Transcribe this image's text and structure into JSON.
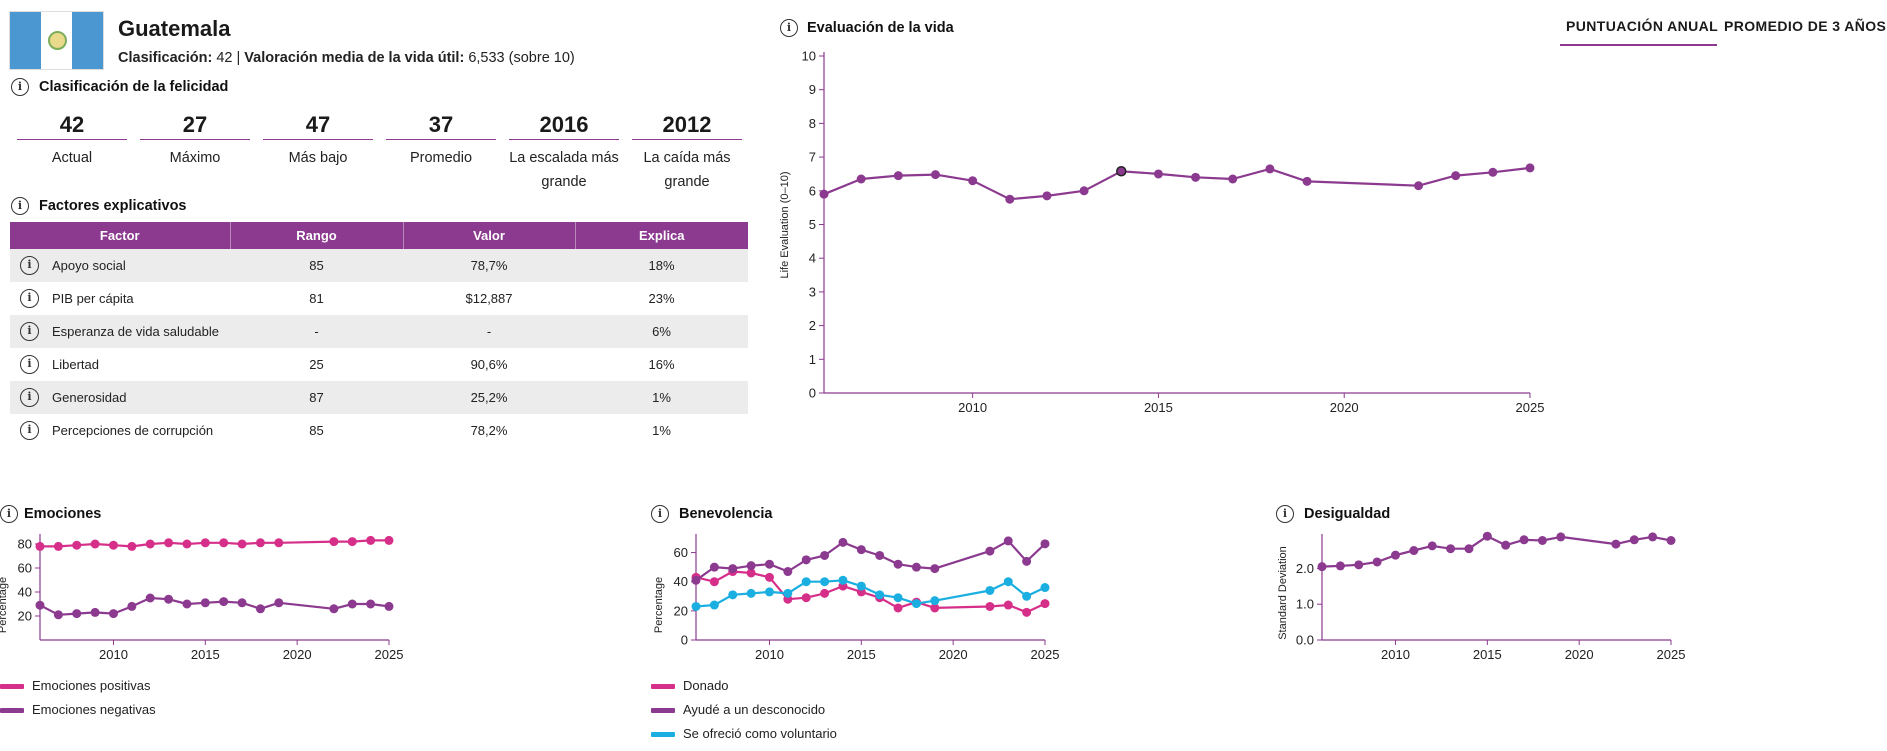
{
  "header": {
    "country": "Guatemala",
    "rank_label": "Clasificación:",
    "rank_value": "42",
    "separator": "|",
    "ladder_label": "Valoración media de la vida útil:",
    "ladder_value": "6,533",
    "ladder_suffix": "(sobre 10)"
  },
  "ranking": {
    "title": "Clasificación de la felicidad",
    "items": [
      {
        "value": "42",
        "label": "Actual"
      },
      {
        "value": "27",
        "label": "Máximo"
      },
      {
        "value": "47",
        "label": "Más bajo"
      },
      {
        "value": "37",
        "label": "Promedio"
      },
      {
        "value": "2016",
        "label": "La escalada más grande"
      },
      {
        "value": "2012",
        "label": "La caída más grande"
      }
    ]
  },
  "factors": {
    "title": "Factores explicativos",
    "columns": [
      "Factor",
      "Rango",
      "Valor",
      "Explica"
    ],
    "rows": [
      {
        "name": "Apoyo social",
        "rank": "85",
        "value": "78,7%",
        "explains": "18%"
      },
      {
        "name": "PIB per cápita",
        "rank": "81",
        "value": "$12,887",
        "explains": "23%"
      },
      {
        "name": "Esperanza de vida saludable",
        "rank": "-",
        "value": "-",
        "explains": "6%"
      },
      {
        "name": "Libertad",
        "rank": "25",
        "value": "90,6%",
        "explains": "16%"
      },
      {
        "name": "Generosidad",
        "rank": "87",
        "value": "25,2%",
        "explains": "1%"
      },
      {
        "name": "Percepciones de corrupción",
        "rank": "85",
        "value": "78,2%",
        "explains": "1%"
      }
    ]
  },
  "tabs": {
    "annual": "PUNTUACIÓN ANUAL",
    "three_year": "PROMEDIO DE 3 AÑOS",
    "active": "annual"
  },
  "colors": {
    "purple": "#8b3a8f",
    "pink": "#d62f8a",
    "cyan": "#1aafe0"
  },
  "icons": [
    "info-icon"
  ],
  "chart_data": [
    {
      "type": "line",
      "title": "Evaluación de la vida",
      "ylabel": "Life Evaluation (0–10)",
      "xlabel": "",
      "xlim": [
        2006,
        2025
      ],
      "ylim": [
        0,
        10
      ],
      "x_ticks": [
        2010,
        2015,
        2020,
        2025
      ],
      "y_ticks": [
        0,
        1,
        2,
        3,
        4,
        5,
        6,
        7,
        8,
        9,
        10
      ],
      "grid": false,
      "series": [
        {
          "color": "#8b3a8f",
          "highlight_x": 2014,
          "points": [
            [
              2006,
              5.9
            ],
            [
              2007,
              6.35
            ],
            [
              2008,
              6.45
            ],
            [
              2009,
              6.48
            ],
            [
              2010,
              6.3
            ],
            [
              2011,
              5.75
            ],
            [
              2012,
              5.85
            ],
            [
              2013,
              6.0
            ],
            [
              2014,
              6.58
            ],
            [
              2015,
              6.5
            ],
            [
              2016,
              6.4
            ],
            [
              2017,
              6.35
            ],
            [
              2018,
              6.65
            ],
            [
              2019,
              6.28
            ],
            [
              2022,
              6.15
            ],
            [
              2023,
              6.45
            ],
            [
              2024,
              6.55
            ],
            [
              2025,
              6.68
            ]
          ]
        }
      ]
    },
    {
      "type": "line",
      "title": "Emociones",
      "ylabel": "Percentage",
      "xlabel": "",
      "xlim": [
        2006,
        2025
      ],
      "ylim": [
        0,
        85
      ],
      "x_ticks": [
        2010,
        2015,
        2020,
        2025
      ],
      "y_ticks": [
        20,
        40,
        60,
        80
      ],
      "grid": false,
      "legend_position": "bottom-left",
      "series": [
        {
          "name": "Emociones positivas",
          "color": "#d62f8a",
          "points": [
            [
              2006,
              78
            ],
            [
              2007,
              78
            ],
            [
              2008,
              79
            ],
            [
              2009,
              80
            ],
            [
              2010,
              79
            ],
            [
              2011,
              78
            ],
            [
              2012,
              80
            ],
            [
              2013,
              81
            ],
            [
              2014,
              80
            ],
            [
              2015,
              81
            ],
            [
              2016,
              81
            ],
            [
              2017,
              80
            ],
            [
              2018,
              81
            ],
            [
              2019,
              81
            ],
            [
              2022,
              82
            ],
            [
              2023,
              82
            ],
            [
              2024,
              83
            ],
            [
              2025,
              83
            ]
          ]
        },
        {
          "name": "Emociones negativas",
          "color": "#8b3a8f",
          "points": [
            [
              2006,
              29
            ],
            [
              2007,
              21
            ],
            [
              2008,
              22
            ],
            [
              2009,
              23
            ],
            [
              2010,
              22
            ],
            [
              2011,
              28
            ],
            [
              2012,
              35
            ],
            [
              2013,
              34
            ],
            [
              2014,
              30
            ],
            [
              2015,
              31
            ],
            [
              2016,
              32
            ],
            [
              2017,
              31
            ],
            [
              2018,
              26
            ],
            [
              2019,
              31
            ],
            [
              2022,
              26
            ],
            [
              2023,
              30
            ],
            [
              2024,
              30
            ],
            [
              2025,
              28
            ]
          ]
        }
      ]
    },
    {
      "type": "line",
      "title": "Benevolencia",
      "ylabel": "Percentage",
      "xlabel": "",
      "xlim": [
        2006,
        2025
      ],
      "ylim": [
        0,
        70
      ],
      "x_ticks": [
        2010,
        2015,
        2020,
        2025
      ],
      "y_ticks": [
        0,
        20,
        40,
        60
      ],
      "grid": false,
      "legend_position": "bottom-left",
      "series": [
        {
          "name": "Donado",
          "color": "#d62f8a",
          "points": [
            [
              2006,
              43
            ],
            [
              2007,
              40
            ],
            [
              2008,
              47
            ],
            [
              2009,
              46
            ],
            [
              2010,
              43
            ],
            [
              2011,
              28
            ],
            [
              2012,
              29
            ],
            [
              2013,
              32
            ],
            [
              2014,
              37
            ],
            [
              2015,
              33
            ],
            [
              2016,
              29
            ],
            [
              2017,
              22
            ],
            [
              2018,
              26
            ],
            [
              2019,
              22
            ],
            [
              2022,
              23
            ],
            [
              2023,
              24
            ],
            [
              2024,
              19
            ],
            [
              2025,
              25
            ]
          ]
        },
        {
          "name": "Ayudé a un desconocido",
          "color": "#8b3a8f",
          "points": [
            [
              2006,
              41
            ],
            [
              2007,
              50
            ],
            [
              2008,
              49
            ],
            [
              2009,
              51
            ],
            [
              2010,
              52
            ],
            [
              2011,
              47
            ],
            [
              2012,
              55
            ],
            [
              2013,
              58
            ],
            [
              2014,
              67
            ],
            [
              2015,
              62
            ],
            [
              2016,
              58
            ],
            [
              2017,
              52
            ],
            [
              2018,
              50
            ],
            [
              2019,
              49
            ],
            [
              2022,
              61
            ],
            [
              2023,
              68
            ],
            [
              2024,
              54
            ],
            [
              2025,
              66
            ]
          ]
        },
        {
          "name": "Se ofreció como voluntario",
          "color": "#1aafe0",
          "points": [
            [
              2006,
              23
            ],
            [
              2007,
              24
            ],
            [
              2008,
              31
            ],
            [
              2009,
              32
            ],
            [
              2010,
              33
            ],
            [
              2011,
              32
            ],
            [
              2012,
              40
            ],
            [
              2013,
              40
            ],
            [
              2014,
              41
            ],
            [
              2015,
              37
            ],
            [
              2016,
              31
            ],
            [
              2017,
              29
            ],
            [
              2018,
              25
            ],
            [
              2019,
              27
            ],
            [
              2022,
              34
            ],
            [
              2023,
              40
            ],
            [
              2024,
              30
            ],
            [
              2025,
              36
            ]
          ]
        }
      ]
    },
    {
      "type": "line",
      "title": "Desigualdad",
      "ylabel": "Standard Deviation",
      "xlabel": "",
      "xlim": [
        2006,
        2025
      ],
      "ylim": [
        0,
        2.85
      ],
      "x_ticks": [
        2010,
        2015,
        2020,
        2025
      ],
      "y_ticks": [
        "0.0",
        "1.0",
        "2.0"
      ],
      "grid": false,
      "series": [
        {
          "color": "#8b3a8f",
          "points": [
            [
              2006,
              2.05
            ],
            [
              2007,
              2.07
            ],
            [
              2008,
              2.1
            ],
            [
              2009,
              2.18
            ],
            [
              2010,
              2.37
            ],
            [
              2011,
              2.5
            ],
            [
              2012,
              2.63
            ],
            [
              2013,
              2.55
            ],
            [
              2014,
              2.55
            ],
            [
              2015,
              2.9
            ],
            [
              2016,
              2.65
            ],
            [
              2017,
              2.8
            ],
            [
              2018,
              2.78
            ],
            [
              2019,
              2.88
            ],
            [
              2022,
              2.68
            ],
            [
              2023,
              2.8
            ],
            [
              2024,
              2.88
            ],
            [
              2025,
              2.78
            ]
          ]
        }
      ]
    }
  ]
}
